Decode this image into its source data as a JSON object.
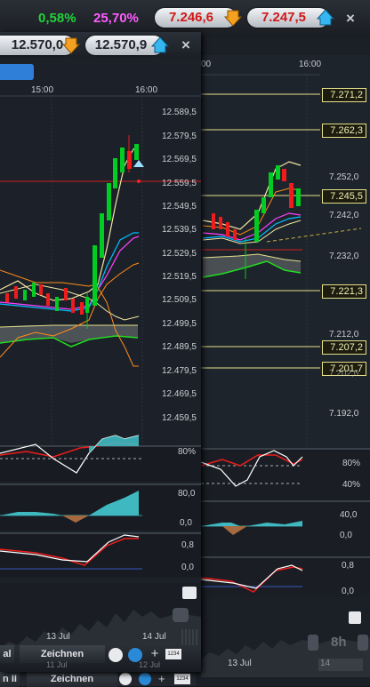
{
  "header": {
    "change_pct_1": "0,58%",
    "change_pct_2": "25,70%",
    "bid_back": "7.246,6",
    "ask_back": "7.247,5",
    "bid_front": "12.570,0",
    "ask_front": "12.570,9",
    "close_symbol": "×"
  },
  "back_chart": {
    "time_labels": [
      "00",
      "16:00"
    ],
    "price_boxes": [
      "7.271,2",
      "7.262,3",
      "7.245,5",
      "7.221,3",
      "7.207,2",
      "7.201,7"
    ],
    "axis_labels": [
      "7.252,0",
      "7.242,0",
      "7.232,0",
      "7.212,0",
      "7.202,0",
      "7.192,0"
    ],
    "osc1_labels": [
      "80%",
      "40%"
    ],
    "osc2_labels": [
      "40,0",
      "0,0"
    ],
    "osc3_labels": [
      "0,8",
      "0,0"
    ],
    "date_label": "13 Jul",
    "zoom_label": "8h",
    "toolbar_label": "Zeichnen",
    "toolbar_small": "1234",
    "toolbar_left": "n II",
    "bottom_num": "14"
  },
  "front_chart": {
    "time_labels": [
      "15:00",
      "16:00"
    ],
    "axis_labels": [
      "12.589,5",
      "12.579,5",
      "12.569,5",
      "12.559,5",
      "12.549,5",
      "12.539,5",
      "12.529,5",
      "12.519,5",
      "12.509,5",
      "12.499,5",
      "12.489,5",
      "12.479,5",
      "12.469,5",
      "12.459,5"
    ],
    "osc1_labels": [
      "80%"
    ],
    "osc2_labels": [
      "80,0",
      "0,0"
    ],
    "osc3_labels": [
      "0,8",
      "0,0"
    ],
    "date_labels": [
      "13 Jul",
      "14 Jul"
    ],
    "ghost_date": "11 Jul",
    "ghost_date2": "12 Jul",
    "toolbar_label": "Zeichnen",
    "toolbar_small": "1234",
    "toolbar_left": "al"
  },
  "colors": {
    "up": "#00cc22",
    "down": "#ee1c1c",
    "pink": "#ff40ff",
    "cyan": "#00bfff",
    "orange": "#ff8c1a",
    "price_box": "#e6e08a"
  }
}
